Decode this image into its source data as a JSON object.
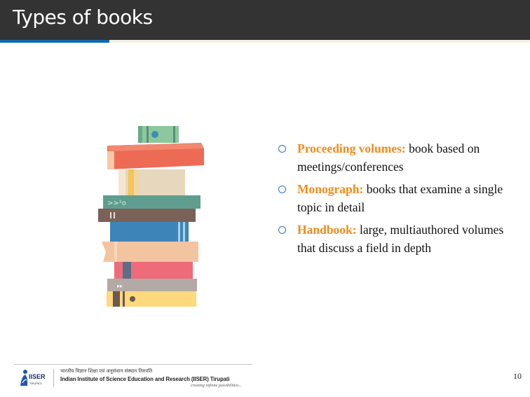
{
  "slide": {
    "title": "Types of books",
    "page_number": "10"
  },
  "bullets": [
    {
      "term": "Proceeding volumes:",
      "text": " book based on meetings/conferences"
    },
    {
      "term": "Monograph:",
      "text": " books that examine a single topic in detail"
    },
    {
      "term": "Handbook:",
      "text": " large, multiauthored volumes that discuss a field in depth"
    }
  ],
  "footer": {
    "logo_text": "IISER",
    "logo_subtext": "TIRUPATI",
    "institute_hindi": "भारतीय विज्ञान शिक्षा एवं अनुसंधान संस्थान तिरुपति",
    "institute_english": "Indian Institute of Science Education and Research (IISER) Tirupati",
    "tagline": "creating infinite possibilities..."
  },
  "colors": {
    "title_bar": "#333333",
    "accent_blue": "#0d6ab4",
    "term_orange": "#f08c1c",
    "bullet_blue": "#2f74c0"
  },
  "icons": [
    "book-stack-illustration",
    "bullet-circle-icon",
    "iiser-logo-icon"
  ]
}
